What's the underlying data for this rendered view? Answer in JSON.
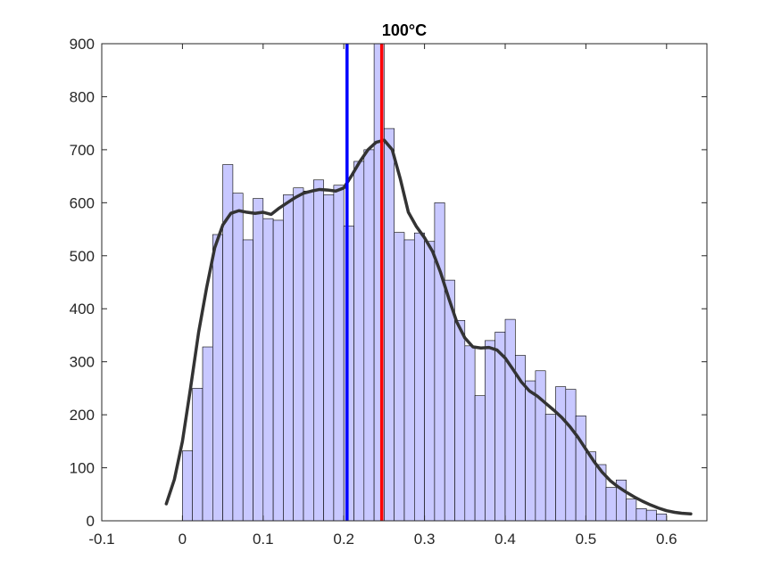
{
  "chart_data": {
    "type": "bar",
    "title": "100°C",
    "xlabel": "",
    "ylabel": "",
    "xlim": [
      -0.1,
      0.65
    ],
    "ylim": [
      0,
      900
    ],
    "grid": false,
    "legend": "none",
    "x_ticks": [
      -0.1,
      0,
      0.1,
      0.2,
      0.3,
      0.4,
      0.5,
      0.6
    ],
    "x_tick_labels": [
      "-0.1",
      "0",
      "0.1",
      "0.2",
      "0.3",
      "0.4",
      "0.5",
      "0.6"
    ],
    "y_ticks": [
      0,
      100,
      200,
      300,
      400,
      500,
      600,
      700,
      800,
      900
    ],
    "y_tick_labels": [
      "0",
      "100",
      "200",
      "300",
      "400",
      "500",
      "600",
      "700",
      "800",
      "900"
    ],
    "histogram": {
      "bin_start": 0.0,
      "bin_width": 0.0125,
      "counts": [
        132,
        250,
        328,
        540,
        672,
        618,
        530,
        608,
        570,
        567,
        615,
        628,
        622,
        643,
        615,
        633,
        556,
        678,
        700,
        900,
        740,
        544,
        530,
        543,
        527,
        600,
        454,
        378,
        330,
        236,
        340,
        356,
        380,
        312,
        264,
        283,
        201,
        253,
        248,
        198,
        130,
        106,
        63,
        77,
        41,
        23,
        20,
        13
      ],
      "fill_color": "#c8c8ff",
      "edge_color": "#000000"
    },
    "density_curve": {
      "color": "#333333",
      "x": [
        -0.02,
        -0.01,
        0.0,
        0.01,
        0.02,
        0.03,
        0.04,
        0.05,
        0.06,
        0.07,
        0.08,
        0.09,
        0.1,
        0.11,
        0.12,
        0.13,
        0.14,
        0.15,
        0.16,
        0.17,
        0.18,
        0.19,
        0.2,
        0.21,
        0.22,
        0.23,
        0.24,
        0.25,
        0.26,
        0.27,
        0.28,
        0.29,
        0.3,
        0.31,
        0.32,
        0.33,
        0.34,
        0.35,
        0.36,
        0.37,
        0.38,
        0.39,
        0.4,
        0.41,
        0.42,
        0.43,
        0.44,
        0.45,
        0.46,
        0.47,
        0.48,
        0.49,
        0.5,
        0.51,
        0.52,
        0.53,
        0.54,
        0.55,
        0.56,
        0.57,
        0.58,
        0.59,
        0.6,
        0.61,
        0.62,
        0.63
      ],
      "y": [
        32,
        78,
        150,
        250,
        355,
        440,
        515,
        558,
        580,
        585,
        582,
        580,
        582,
        578,
        590,
        600,
        610,
        618,
        622,
        625,
        624,
        622,
        628,
        652,
        678,
        700,
        714,
        718,
        700,
        645,
        582,
        555,
        534,
        508,
        468,
        420,
        375,
        345,
        328,
        326,
        327,
        322,
        307,
        285,
        262,
        245,
        235,
        222,
        209,
        195,
        178,
        158,
        135,
        112,
        92,
        76,
        64,
        54,
        45,
        37,
        30,
        24,
        19,
        16,
        14,
        13
      ]
    },
    "vertical_lines": [
      {
        "x": 0.204,
        "color": "#0000ff"
      },
      {
        "x": 0.247,
        "color": "#ff0000"
      }
    ]
  }
}
